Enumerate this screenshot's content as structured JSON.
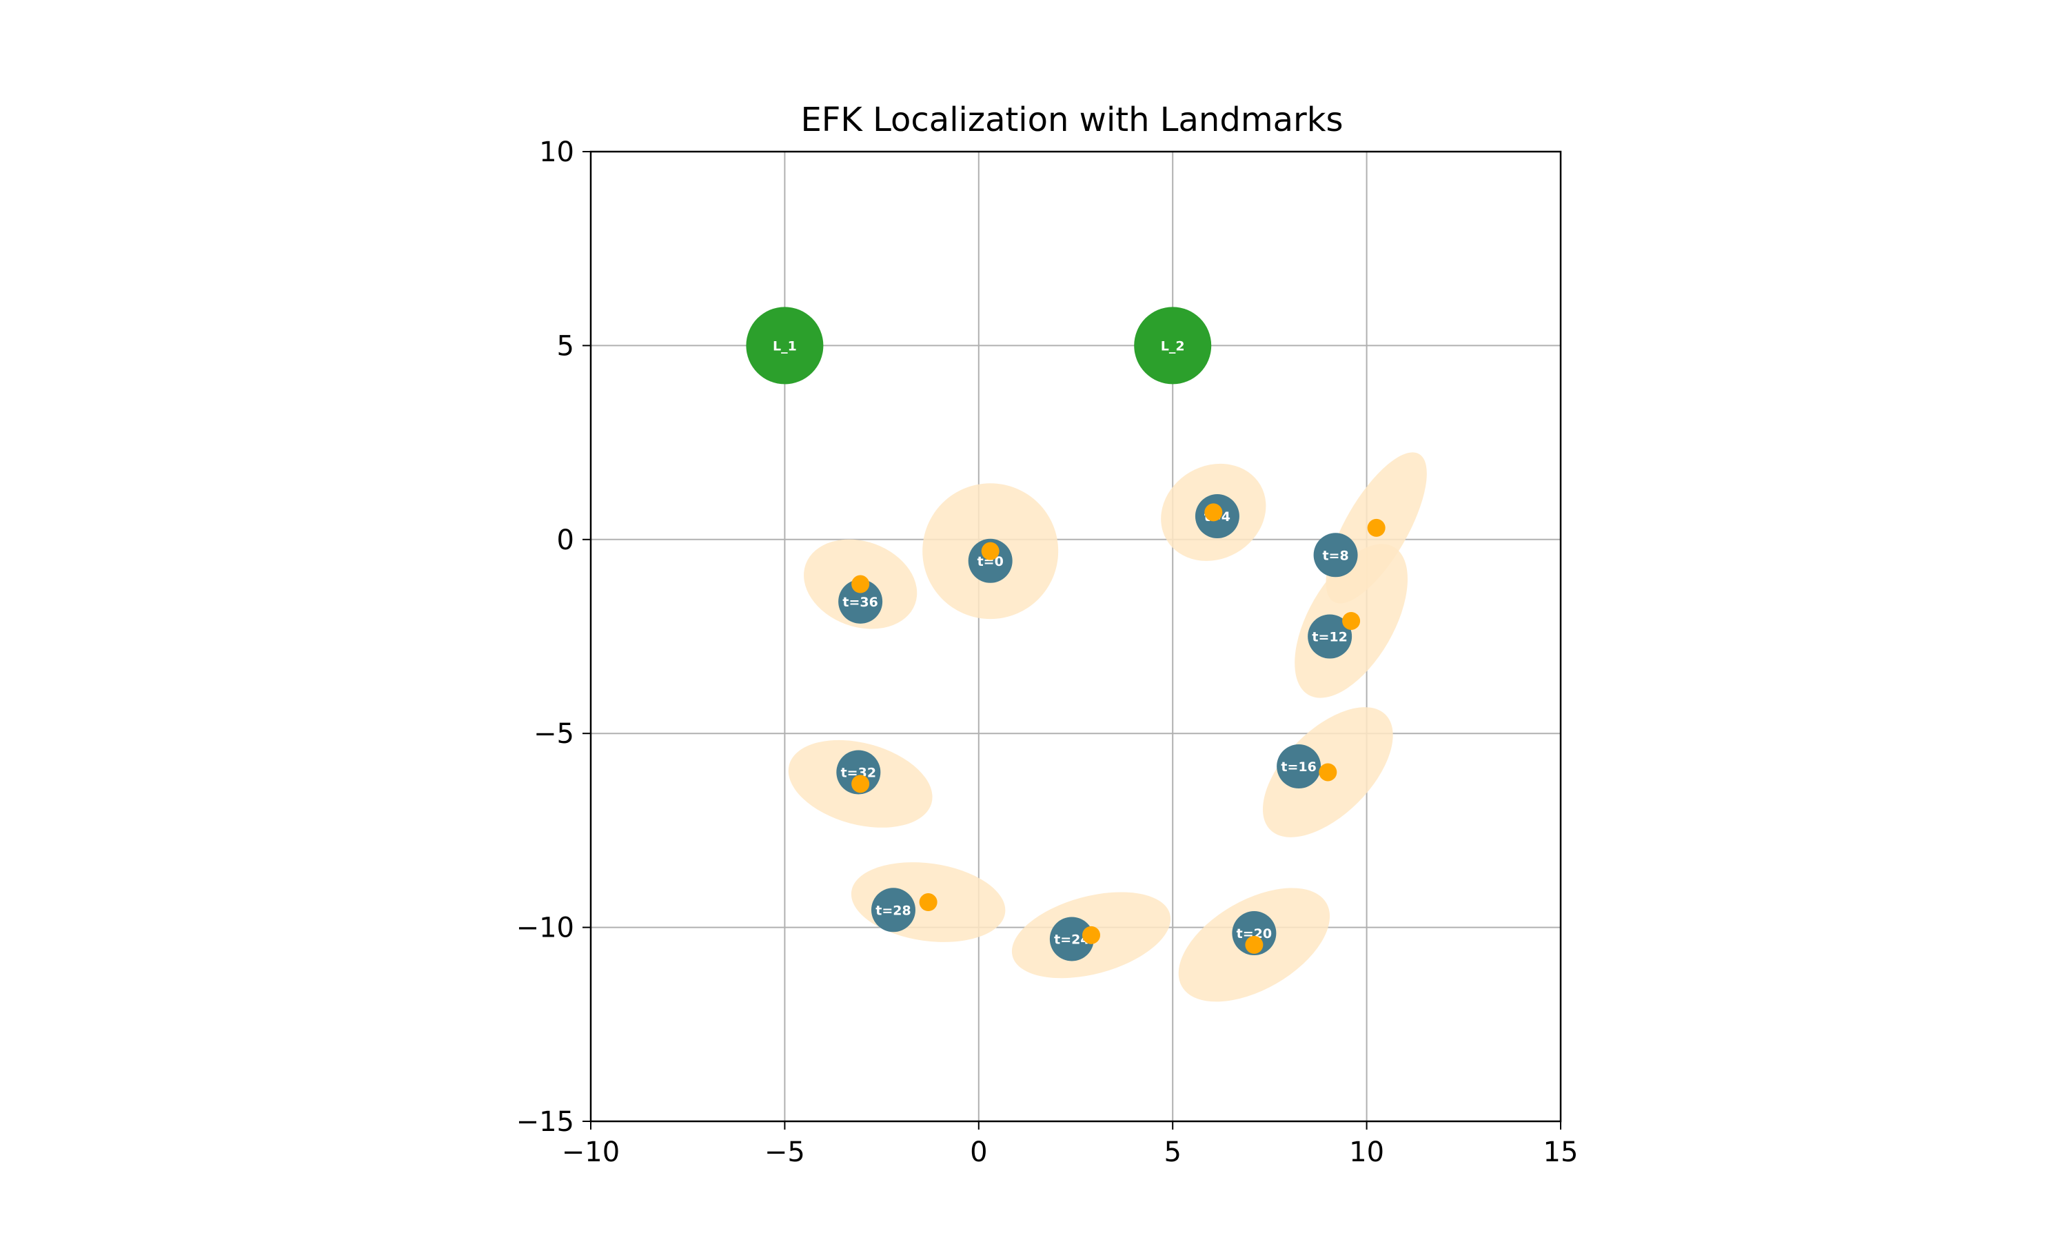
{
  "chart_data": {
    "type": "scatter",
    "title": "EFK Localization with Landmarks",
    "xlabel": "",
    "ylabel": "",
    "xlim": [
      -10,
      15
    ],
    "ylim": [
      -15,
      10
    ],
    "xticks": [
      -10,
      -5,
      0,
      5,
      10,
      15
    ],
    "yticks": [
      -15,
      -10,
      -5,
      0,
      5,
      10
    ],
    "xtick_labels": [
      "−10",
      "−5",
      "0",
      "5",
      "10",
      "15"
    ],
    "ytick_labels": [
      "−15",
      "−10",
      "−5",
      "0",
      "5",
      "10"
    ],
    "grid": true,
    "colors": {
      "landmark": "#2ca02c",
      "estimate": "#457b8f",
      "measurement": "#ffa500",
      "covariance": "#ffe8c4",
      "grid": "#b0b0b0",
      "axes": "#000000"
    },
    "landmarks": [
      {
        "label": "L_1",
        "x": -5,
        "y": 5
      },
      {
        "label": "L_2",
        "x": 5,
        "y": 5
      }
    ],
    "series": [
      {
        "points": [
          {
            "label": "t=0",
            "est": [
              0.3,
              -0.55
            ],
            "meas": [
              0.3,
              -0.3
            ],
            "cov": {
              "w": 3.5,
              "h": 3.5,
              "angle": 0,
              "center": [
                0.3,
                -0.3
              ]
            }
          },
          {
            "label": "t=4",
            "est": [
              6.15,
              0.6
            ],
            "meas": [
              6.05,
              0.7
            ],
            "cov": {
              "w": 2.8,
              "h": 2.4,
              "angle": 30,
              "center": [
                6.05,
                0.7
              ]
            }
          },
          {
            "label": "t=8",
            "est": [
              9.2,
              -0.4
            ],
            "meas": [
              10.25,
              0.3
            ],
            "cov": {
              "w": 4.4,
              "h": 1.6,
              "angle": 60,
              "center": [
                10.25,
                0.3
              ]
            }
          },
          {
            "label": "t=12",
            "est": [
              9.05,
              -2.5
            ],
            "meas": [
              9.6,
              -2.1
            ],
            "cov": {
              "w": 4.4,
              "h": 2.2,
              "angle": 60,
              "center": [
                9.6,
                -2.1
              ]
            }
          },
          {
            "label": "t=16",
            "est": [
              8.25,
              -5.85
            ],
            "meas": [
              9.0,
              -6.0
            ],
            "cov": {
              "w": 4.2,
              "h": 2.2,
              "angle": 45,
              "center": [
                9.0,
                -6.0
              ]
            }
          },
          {
            "label": "t=20",
            "est": [
              7.1,
              -10.15
            ],
            "meas": [
              7.1,
              -10.45
            ],
            "cov": {
              "w": 4.3,
              "h": 2.3,
              "angle": 30,
              "center": [
                7.1,
                -10.45
              ]
            }
          },
          {
            "label": "t=24",
            "est": [
              2.4,
              -10.3
            ],
            "meas": [
              2.9,
              -10.2
            ],
            "cov": {
              "w": 4.2,
              "h": 2.0,
              "angle": 15,
              "center": [
                2.9,
                -10.2
              ]
            }
          },
          {
            "label": "t=28",
            "est": [
              -2.2,
              -9.55
            ],
            "meas": [
              -1.3,
              -9.35
            ],
            "cov": {
              "w": 4.0,
              "h": 2.0,
              "angle": -8,
              "center": [
                -1.3,
                -9.35
              ]
            }
          },
          {
            "label": "t=32",
            "est": [
              -3.1,
              -6.0
            ],
            "meas": [
              -3.05,
              -6.3
            ],
            "cov": {
              "w": 3.8,
              "h": 2.1,
              "angle": -15,
              "center": [
                -3.05,
                -6.3
              ]
            }
          },
          {
            "label": "t=36",
            "est": [
              -3.05,
              -1.6
            ],
            "meas": [
              -3.05,
              -1.15
            ],
            "cov": {
              "w": 3.0,
              "h": 2.2,
              "angle": -20,
              "center": [
                -3.05,
                -1.15
              ]
            }
          }
        ]
      }
    ]
  }
}
